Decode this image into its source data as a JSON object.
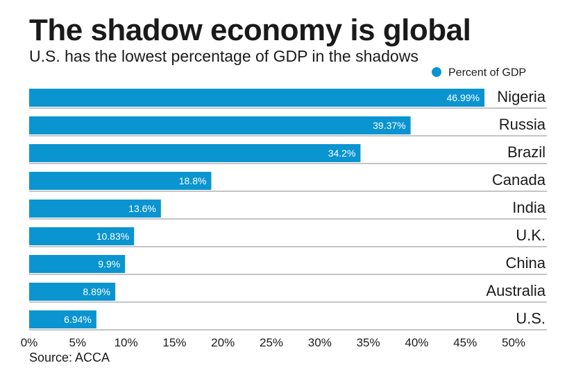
{
  "chart_data": {
    "type": "bar",
    "orientation": "horizontal",
    "title": "The shadow economy is global",
    "subtitle": "U.S. has the lowest percentage of GDP in the shadows",
    "source": "Source: ACCA",
    "categories": [
      "Nigeria",
      "Russia",
      "Brazil",
      "Canada",
      "India",
      "U.K.",
      "China",
      "Australia",
      "U.S."
    ],
    "series": [
      {
        "name": "Percent of GDP",
        "values": [
          46.99,
          39.37,
          34.2,
          18.8,
          13.6,
          10.83,
          9.9,
          8.89,
          6.94
        ],
        "labels": [
          "46.99%",
          "39.37%",
          "34.2%",
          "18.8%",
          "13.6%",
          "10.83%",
          "9.9%",
          "8.89%",
          "6.94%"
        ]
      }
    ],
    "xlim": [
      0,
      50
    ],
    "xticks": [
      0,
      5,
      10,
      15,
      20,
      25,
      30,
      35,
      40,
      45,
      50
    ],
    "xtick_labels": [
      "0%",
      "5%",
      "10%",
      "15%",
      "20%",
      "25%",
      "30%",
      "35%",
      "40%",
      "45%",
      "50%"
    ],
    "legend_position": "top-right",
    "bar_color": "#0a94d0",
    "grid": false
  }
}
